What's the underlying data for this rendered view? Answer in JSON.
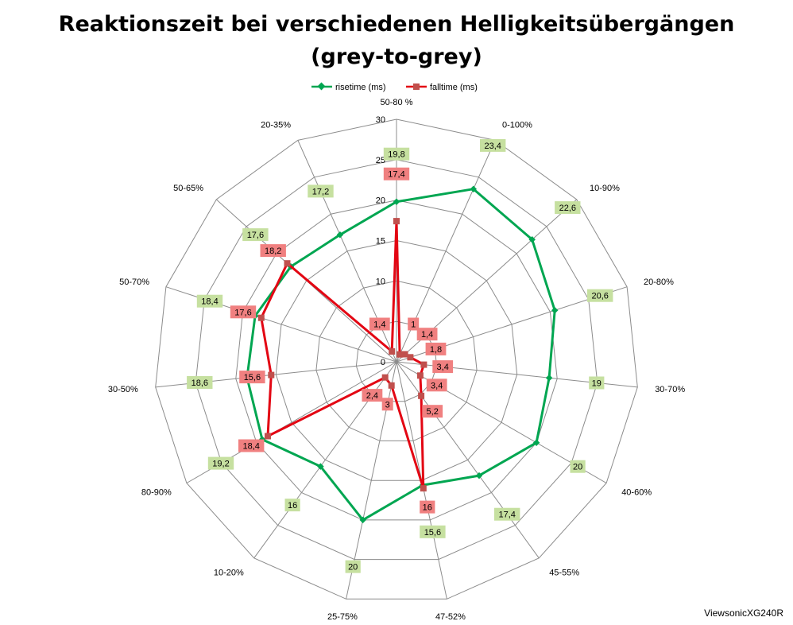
{
  "chart_data": {
    "type": "radar",
    "title_line1": "Reaktionszeit bei verschiedenen Helligkeitsübergängen",
    "title_line2": "(grey-to-grey)",
    "categories": [
      "50-80 %",
      "0-100%",
      "10-90%",
      "20-80%",
      "30-70%",
      "40-60%",
      "45-55%",
      "47-52%",
      "25-75%",
      "10-20%",
      "80-90%",
      "30-50%",
      "50-70%",
      "50-65%",
      "20-35%"
    ],
    "r_ticks": [
      "0",
      "5",
      "10",
      "15",
      "20",
      "25",
      "30"
    ],
    "rlim": [
      0,
      30
    ],
    "legend_position": "top",
    "series": [
      {
        "name": "risetime (ms)",
        "color": "#00a651",
        "label_bg": "#c6e0a0",
        "marker": "diamond",
        "values": [
          19.8,
          23.4,
          22.6,
          20.6,
          19,
          20,
          17.4,
          15.6,
          20,
          16,
          19.2,
          18.6,
          18.4,
          17.6,
          17.2
        ],
        "labels": [
          "19,8",
          "23,4",
          "22,6",
          "20,6",
          "19",
          "20",
          "17,4",
          "15,6",
          "20",
          "16",
          "19,2",
          "18,6",
          "18,4",
          "17,6",
          "17,2"
        ]
      },
      {
        "name": "falltime (ms)",
        "color": "#e30613",
        "label_bg": "#f08080",
        "marker": "square",
        "values": [
          17.4,
          1,
          1.4,
          1.8,
          3.4,
          3.4,
          5.2,
          16,
          3,
          2.4,
          18.4,
          15.6,
          17.6,
          18.2,
          1.4
        ],
        "labels": [
          "17,4",
          "1",
          "1,4",
          "1,8",
          "3,4",
          "3,4",
          "5,2",
          "16",
          "3",
          "2,4",
          "18,4",
          "15,6",
          "17,6",
          "18,2",
          "1,4"
        ]
      }
    ]
  },
  "footer": "ViewsonicXG240R"
}
